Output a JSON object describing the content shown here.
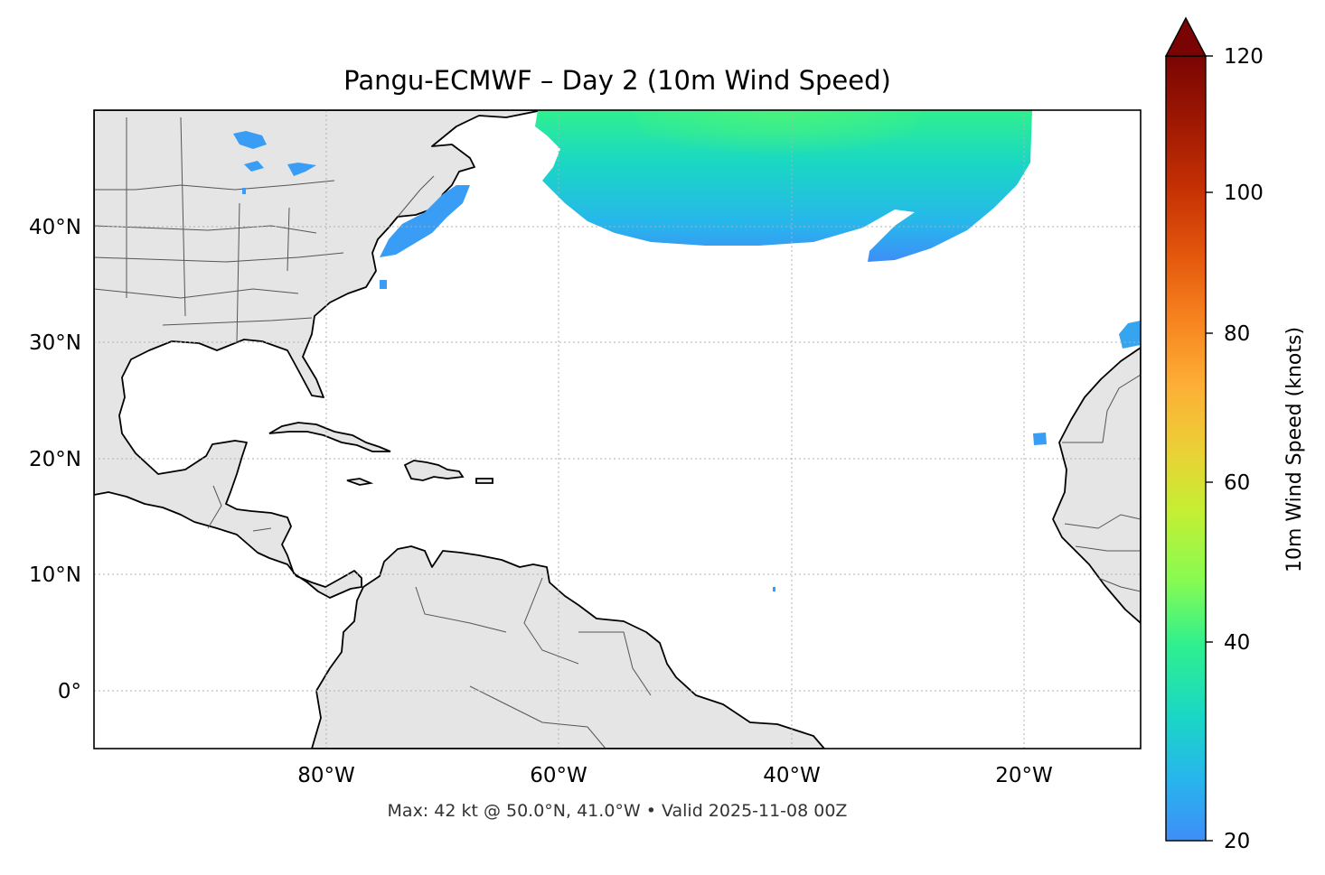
{
  "title": "Pangu-ECMWF – Day 2 (10m Wind Speed)",
  "footer": "Max: 42 kt @ 50.0°N, 41.0°W • Valid 2025-11-08 00Z",
  "map": {
    "projection": "PlateCarree",
    "lon_range": [
      -100,
      -10
    ],
    "lat_range": [
      -5,
      50
    ],
    "lat_ticks": [
      {
        "value": 40,
        "label": "40°N"
      },
      {
        "value": 30,
        "label": "30°N"
      },
      {
        "value": 20,
        "label": "20°N"
      },
      {
        "value": 10,
        "label": "10°N"
      },
      {
        "value": 0,
        "label": "0°"
      }
    ],
    "lon_ticks": [
      {
        "value": -80,
        "label": "80°W"
      },
      {
        "value": -60,
        "label": "60°W"
      },
      {
        "value": -40,
        "label": "40°W"
      },
      {
        "value": -20,
        "label": "20°W"
      }
    ],
    "grid": "dotted",
    "land_color": "#e5e5e5",
    "coast_color": "#000000",
    "border_color": "#555555"
  },
  "colorbar": {
    "label": "10m Wind Speed (knots)",
    "range": [
      20,
      120
    ],
    "extend": "max",
    "colormap": "turbo",
    "ticks": [
      {
        "value": 120,
        "label": "120"
      },
      {
        "value": 100,
        "label": "100"
      },
      {
        "value": 80,
        "label": "80"
      },
      {
        "value": 60,
        "label": "60"
      },
      {
        "value": 40,
        "label": "40"
      },
      {
        "value": 20,
        "label": "20"
      }
    ]
  },
  "wind_field": {
    "max_kt": 42,
    "max_location": "50.0°N, 41.0°W",
    "valid": "2025-11-08 00Z"
  }
}
